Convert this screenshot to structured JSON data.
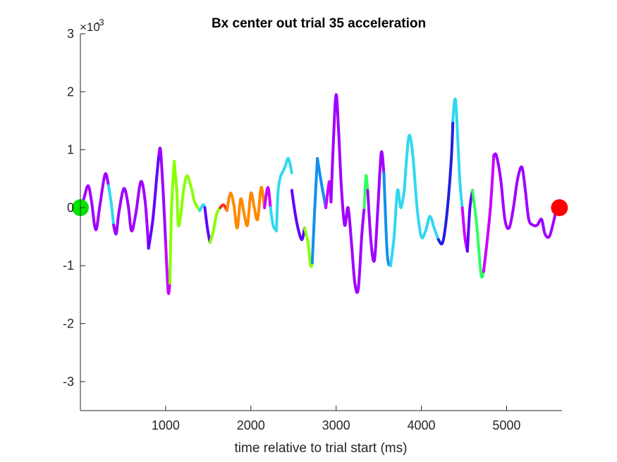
{
  "chart_data": {
    "type": "line",
    "title": "Bx  center out trial 35 acceleration",
    "xlabel": "time relative to trial start (ms)",
    "ylabel": "",
    "xlim": [
      0,
      5650
    ],
    "ylim": [
      -3.5,
      3.0
    ],
    "y_exponent_base": "×10",
    "y_exponent_power": "-3",
    "xticks": [
      1000,
      2000,
      3000,
      4000,
      5000
    ],
    "xtick_labels": [
      "1000",
      "2000",
      "3000",
      "4000",
      "5000"
    ],
    "yticks": [
      -3,
      -2,
      -1,
      0,
      1,
      2,
      3
    ],
    "ytick_labels": [
      "-3",
      "-2",
      "-1",
      "0",
      "1",
      "2",
      "3"
    ],
    "grid": false,
    "legend": "none",
    "start_marker": {
      "x": 0,
      "y": 0,
      "color": "#00e600"
    },
    "end_marker": {
      "x": 5620,
      "y": 0,
      "color": "#ff0000"
    },
    "series": [
      {
        "color": "#a000ff",
        "x": [
          0,
          40,
          90,
          130,
          180,
          230,
          290,
          330
        ],
        "y": [
          0,
          0.15,
          0.38,
          0.12,
          -0.38,
          0.05,
          0.58,
          0.38
        ]
      },
      {
        "color": "#30d8f0",
        "x": [
          330,
          360,
          390
        ],
        "y": [
          0.38,
          0.1,
          -0.3
        ]
      },
      {
        "color": "#a000ff",
        "x": [
          390,
          420,
          450,
          510,
          560,
          600,
          650,
          710,
          760,
          800
        ],
        "y": [
          -0.3,
          -0.45,
          -0.1,
          0.33,
          0.05,
          -0.4,
          -0.1,
          0.45,
          0.1,
          -0.7
        ]
      },
      {
        "color": "#6000ff",
        "x": [
          800,
          850,
          900,
          920
        ],
        "y": [
          -0.7,
          -0.2,
          0.6,
          0.9
        ]
      },
      {
        "color": "#a000ff",
        "x": [
          920,
          940,
          970,
          1000
        ],
        "y": [
          0.9,
          1.0,
          0.3,
          -0.6
        ]
      },
      {
        "color": "#cc00ff",
        "x": [
          1000,
          1030,
          1050
        ],
        "y": [
          -0.6,
          -1.45,
          -1.3
        ]
      },
      {
        "color": "#88ff00",
        "x": [
          1050,
          1070,
          1100
        ],
        "y": [
          -1.3,
          0.0,
          0.8
        ]
      },
      {
        "color": "#88ff00",
        "x": [
          1100,
          1130,
          1150,
          1180,
          1210,
          1250,
          1300,
          1340,
          1400
        ],
        "y": [
          0.8,
          0.3,
          -0.3,
          -0.1,
          0.3,
          0.55,
          0.35,
          0.1,
          -0.05
        ]
      },
      {
        "color": "#30d8f0",
        "x": [
          1400,
          1440,
          1460
        ],
        "y": [
          -0.05,
          0.05,
          0.0
        ]
      },
      {
        "color": "#6000ff",
        "x": [
          1460,
          1490,
          1520
        ],
        "y": [
          0.0,
          -0.35,
          -0.6
        ]
      },
      {
        "color": "#88ff00",
        "x": [
          1520,
          1560,
          1600,
          1640
        ],
        "y": [
          -0.6,
          -0.4,
          -0.1,
          0.0
        ]
      },
      {
        "color": "#ff3010",
        "x": [
          1640,
          1680,
          1720
        ],
        "y": [
          0.0,
          0.05,
          -0.05
        ]
      },
      {
        "color": "#ff8800",
        "x": [
          1720,
          1760,
          1800,
          1840,
          1880,
          1920,
          1960,
          2000,
          2040,
          2080,
          2120,
          2160
        ],
        "y": [
          -0.05,
          0.25,
          0.05,
          -0.35,
          0.15,
          -0.1,
          -0.3,
          0.25,
          0.0,
          -0.2,
          0.35,
          0.0
        ]
      },
      {
        "color": "#cc00ff",
        "x": [
          2160,
          2200,
          2230
        ],
        "y": [
          0.0,
          0.35,
          0.0
        ]
      },
      {
        "color": "#30d8f0",
        "x": [
          2230,
          2260,
          2300
        ],
        "y": [
          0.0,
          -0.3,
          -0.4
        ]
      },
      {
        "color": "#30d8f0",
        "x": [
          2300,
          2320,
          2350
        ],
        "y": [
          -0.4,
          0.3,
          0.55
        ]
      },
      {
        "color": "#30d8f0",
        "x": [
          2350,
          2400,
          2440,
          2480
        ],
        "y": [
          0.55,
          0.7,
          0.85,
          0.6
        ]
      },
      {
        "color": "#6000ff",
        "x": [
          2480,
          2520,
          2560,
          2600,
          2630
        ],
        "y": [
          0.3,
          -0.1,
          -0.4,
          -0.55,
          -0.35
        ]
      },
      {
        "color": "#88ff00",
        "x": [
          2630,
          2670,
          2700,
          2720
        ],
        "y": [
          -0.35,
          -0.6,
          -1.0,
          -0.95
        ]
      },
      {
        "color": "#1090f0",
        "x": [
          2720,
          2750,
          2780
        ],
        "y": [
          -0.95,
          0.0,
          0.85
        ]
      },
      {
        "color": "#1090f0",
        "x": [
          2780,
          2830,
          2880
        ],
        "y": [
          0.85,
          0.4,
          0.0
        ]
      },
      {
        "color": "#cc00ff",
        "x": [
          2880,
          2920,
          2940
        ],
        "y": [
          0.0,
          0.45,
          0.1
        ]
      },
      {
        "color": "#a000ff",
        "x": [
          2940,
          2970,
          3000,
          3030,
          3060,
          3100,
          3140,
          3180,
          3220,
          3260,
          3300,
          3330
        ],
        "y": [
          0.1,
          1.2,
          1.95,
          1.3,
          0.4,
          -0.3,
          0.0,
          -0.6,
          -1.3,
          -1.4,
          -0.5,
          0.0
        ]
      },
      {
        "color": "#30ff60",
        "x": [
          3330,
          3350,
          3370
        ],
        "y": [
          0.0,
          0.55,
          0.3
        ]
      },
      {
        "color": "#a000ff",
        "x": [
          3370,
          3410,
          3450,
          3490,
          3530,
          3560
        ],
        "y": [
          0.3,
          -0.6,
          -0.9,
          0.0,
          0.95,
          0.6
        ]
      },
      {
        "color": "#1090f0",
        "x": [
          3560,
          3600,
          3640
        ],
        "y": [
          0.6,
          -0.8,
          -1.0
        ]
      },
      {
        "color": "#30d8f0",
        "x": [
          3640,
          3680,
          3720,
          3760,
          3800
        ],
        "y": [
          -1.0,
          -0.5,
          0.3,
          0.0,
          0.3
        ]
      },
      {
        "color": "#30d8f0",
        "x": [
          3800,
          3830,
          3860,
          3900,
          3950,
          4000,
          4050,
          4100,
          4150,
          4200
        ],
        "y": [
          0.3,
          0.9,
          1.25,
          0.9,
          0.0,
          -0.5,
          -0.4,
          -0.15,
          -0.35,
          -0.55
        ]
      },
      {
        "color": "#2020e0",
        "x": [
          4200,
          4250,
          4300,
          4350,
          4370
        ],
        "y": [
          -0.55,
          -0.6,
          -0.1,
          0.8,
          1.5
        ]
      },
      {
        "color": "#30d8f0",
        "x": [
          4370,
          4390,
          4410,
          4450,
          4480
        ],
        "y": [
          1.5,
          1.85,
          1.7,
          0.5,
          0.0
        ]
      },
      {
        "color": "#cc00ff",
        "x": [
          4480,
          4510,
          4540
        ],
        "y": [
          0.0,
          -0.5,
          -0.75
        ]
      },
      {
        "color": "#6000ff",
        "x": [
          4540,
          4570,
          4600
        ],
        "y": [
          -0.75,
          0.0,
          0.3
        ]
      },
      {
        "color": "#30ff60",
        "x": [
          4600,
          4650,
          4700,
          4730
        ],
        "y": [
          0.3,
          -0.3,
          -1.15,
          -1.1
        ]
      },
      {
        "color": "#cc00ff",
        "x": [
          4730,
          4770,
          4810,
          4850
        ],
        "y": [
          -1.1,
          -0.6,
          0.0,
          0.9
        ]
      },
      {
        "color": "#a000ff",
        "x": [
          4850,
          4880,
          4930,
          4980,
          5030,
          5080,
          5130,
          5180,
          5220,
          5260,
          5310,
          5360,
          5410,
          5450,
          5500,
          5550,
          5590,
          5620
        ],
        "y": [
          0.9,
          0.9,
          0.5,
          -0.2,
          -0.35,
          0.0,
          0.5,
          0.7,
          0.3,
          -0.2,
          -0.3,
          -0.3,
          -0.2,
          -0.45,
          -0.5,
          -0.25,
          0.0,
          0.0
        ]
      }
    ]
  }
}
